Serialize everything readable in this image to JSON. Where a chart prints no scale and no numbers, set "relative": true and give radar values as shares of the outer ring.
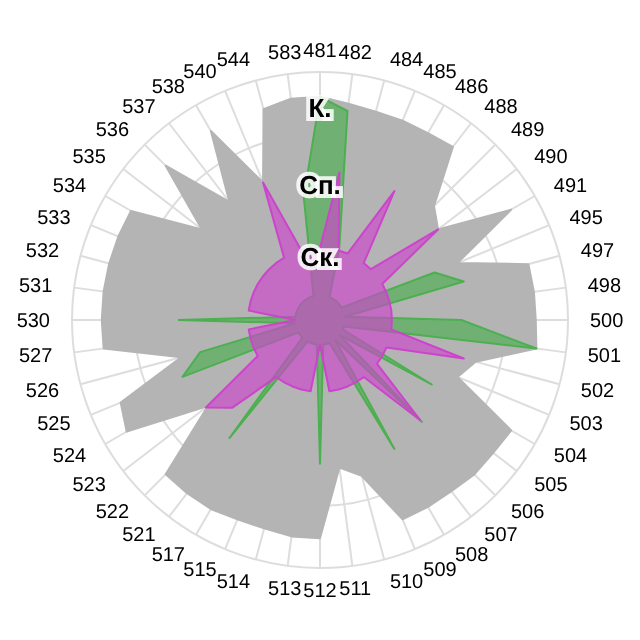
{
  "chart_data": {
    "type": "radar",
    "relative": true,
    "grid": true,
    "categories": [
      "481",
      "482",
      "484",
      "485",
      "486",
      "488",
      "489",
      "490",
      "491",
      "495",
      "497",
      "498",
      "500",
      "501",
      "502",
      "503",
      "504",
      "505",
      "506",
      "507",
      "508",
      "509",
      "510",
      "511",
      "512",
      "513",
      "514",
      "515",
      "517",
      "521",
      "522",
      "523",
      "524",
      "525",
      "526",
      "527",
      "530",
      "531",
      "532",
      "533",
      "534",
      "535",
      "536",
      "537",
      "538",
      "540",
      "544",
      "583"
    ],
    "annotations": [
      "К.",
      "Сп.",
      "Ск."
    ],
    "series": [
      {
        "color": "#b4b4b4",
        "values": [
          0.9,
          0.88,
          0.87,
          0.87,
          0.87,
          0.88,
          0.65,
          0.6,
          0.89,
          0.6,
          0.87,
          0.87,
          0.87,
          0.88,
          0.65,
          0.6,
          0.89,
          0.88,
          0.88,
          0.87,
          0.87,
          0.87,
          0.65,
          0.6,
          0.88,
          0.88,
          0.87,
          0.87,
          0.88,
          0.88,
          0.88,
          0.57,
          0.9,
          0.87,
          0.58,
          0.88,
          0.88,
          0.88,
          0.88,
          0.88,
          0.88,
          0.6,
          0.88,
          0.6,
          0.88,
          0.6,
          0.88,
          0.9
        ]
      },
      {
        "color": "#4caf50",
        "values": [
          0.9,
          0.85,
          0.3,
          0.1,
          0.1,
          0.1,
          0.1,
          0.1,
          0.1,
          0.5,
          0.6,
          0.1,
          0.57,
          0.88,
          0.1,
          0.1,
          0.52,
          0.1,
          0.58,
          0.1,
          0.6,
          0.1,
          0.1,
          0.1,
          0.58,
          0.1,
          0.1,
          0.1,
          0.1,
          0.6,
          0.1,
          0.1,
          0.1,
          0.6,
          0.5,
          0.1,
          0.57,
          0.1,
          0.1,
          0.1,
          0.1,
          0.1,
          0.1,
          0.1,
          0.1,
          0.1,
          0.1,
          0.5
        ]
      },
      {
        "color": "#cc44cc",
        "values": [
          0.29,
          0.6,
          0.29,
          0.29,
          0.6,
          0.29,
          0.29,
          0.6,
          0.29,
          0.29,
          0.29,
          0.29,
          0.29,
          0.29,
          0.6,
          0.29,
          0.29,
          0.29,
          0.57,
          0.29,
          0.29,
          0.29,
          0.29,
          0.29,
          0.1,
          0.29,
          0.29,
          0.29,
          0.29,
          0.29,
          0.5,
          0.58,
          0.29,
          0.29,
          0.29,
          0.29,
          0.1,
          0.29,
          0.29,
          0.29,
          0.29,
          0.29,
          0.29,
          0.29,
          0.29,
          0.6,
          0.29,
          0.29
        ]
      }
    ]
  }
}
